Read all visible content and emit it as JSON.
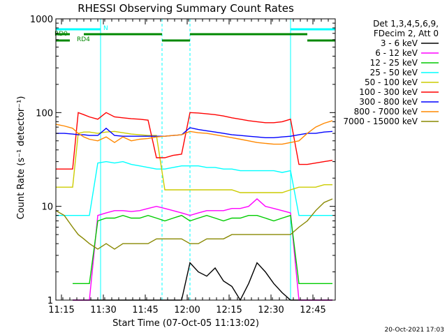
{
  "chart_data": {
    "type": "line",
    "title": "RHESSI Observing Summary Count Rates",
    "xlabel": "Start Time (07-Oct-05 11:13:02)",
    "ylabel": "Count Rate (s⁻¹ detector⁻¹)",
    "y_scale": "log",
    "ylim": [
      1,
      1000
    ],
    "xlim_minutes": [
      0,
      100
    ],
    "x_ticks": [
      {
        "label": "11:15",
        "minutes": 2
      },
      {
        "label": "11:30",
        "minutes": 17
      },
      {
        "label": "11:45",
        "minutes": 32
      },
      {
        "label": "12:00",
        "minutes": 47
      },
      {
        "label": "12:15",
        "minutes": 62
      },
      {
        "label": "12:30",
        "minutes": 77
      },
      {
        "label": "12:45",
        "minutes": 92
      }
    ],
    "y_ticks": [
      {
        "label": "1",
        "value": 1
      },
      {
        "label": "10",
        "value": 10
      },
      {
        "label": "100",
        "value": 100
      },
      {
        "label": "1000",
        "value": 1000
      }
    ],
    "legend_header": [
      "Det 1,3,4,5,6,9,",
      "FDecim 2, Att 0"
    ],
    "legend_position": "right",
    "series": [
      {
        "name": "3 - 6 keV",
        "color": "#000000",
        "x": [
          6,
          8,
          10,
          12,
          15,
          18,
          21,
          24,
          27,
          30,
          33,
          36,
          39,
          42,
          45,
          48,
          51,
          54,
          57,
          60,
          63,
          66,
          69,
          72,
          75,
          78,
          81,
          84,
          87,
          90,
          93,
          96,
          99
        ],
        "values": [
          1,
          1,
          1,
          1,
          1,
          1,
          1,
          1,
          1,
          1,
          1,
          1,
          1,
          1,
          1,
          2.5,
          2,
          1.8,
          2.2,
          1.6,
          1.4,
          1,
          1.5,
          2.5,
          2,
          1.5,
          1.2,
          1,
          1,
          1,
          1,
          1,
          1
        ]
      },
      {
        "name": "6 - 12 keV",
        "color": "#ff00ff",
        "x": [
          6,
          8,
          10,
          12,
          15,
          18,
          21,
          24,
          27,
          30,
          33,
          36,
          39,
          42,
          45,
          48,
          51,
          54,
          57,
          60,
          63,
          66,
          69,
          72,
          75,
          78,
          81,
          84,
          87,
          90,
          93,
          96,
          99
        ],
        "values": [
          1,
          1,
          1,
          1,
          8,
          8.5,
          9,
          9,
          8.8,
          9,
          9.5,
          10,
          9.5,
          9,
          8.5,
          8,
          8.5,
          9,
          9,
          9,
          9.5,
          9.5,
          10,
          12,
          10,
          9.5,
          9,
          8.5,
          1,
          1,
          1,
          1,
          1
        ]
      },
      {
        "name": "12 - 25 keV",
        "color": "#00cc00",
        "x": [
          6,
          8,
          10,
          12,
          15,
          18,
          21,
          24,
          27,
          30,
          33,
          36,
          39,
          42,
          45,
          48,
          51,
          54,
          57,
          60,
          63,
          66,
          69,
          72,
          75,
          78,
          81,
          84,
          87,
          90,
          93,
          96,
          99
        ],
        "values": [
          1.5,
          1.5,
          1.5,
          1.5,
          7,
          7.5,
          7.5,
          8,
          7.5,
          7.5,
          8,
          7.5,
          7,
          7.5,
          8,
          7,
          7.5,
          8,
          7.5,
          7,
          7.5,
          7.5,
          8,
          8,
          7.5,
          7,
          7.5,
          8,
          1.5,
          1.5,
          1.5,
          1.5,
          1.5
        ]
      },
      {
        "name": "25 - 50 keV",
        "color": "#00ffff",
        "x": [
          0,
          3,
          6,
          8,
          10,
          12,
          15,
          18,
          21,
          24,
          27,
          30,
          33,
          36,
          39,
          42,
          45,
          48,
          51,
          54,
          57,
          60,
          63,
          66,
          69,
          72,
          75,
          78,
          81,
          84,
          87,
          90,
          93,
          96,
          99
        ],
        "values": [
          8,
          8,
          8,
          8,
          8,
          8,
          29,
          30,
          29,
          30,
          28,
          27,
          26,
          25,
          25,
          26,
          27,
          27,
          27,
          26,
          26,
          25,
          25,
          24,
          24,
          24,
          24,
          24,
          23,
          24,
          8,
          8,
          8,
          8,
          8
        ]
      },
      {
        "name": "50 - 100 keV",
        "color": "#cccc00",
        "x": [
          0,
          3,
          6,
          8,
          10,
          12,
          15,
          18,
          21,
          24,
          27,
          30,
          33,
          36,
          39,
          42,
          45,
          48,
          51,
          54,
          57,
          60,
          63,
          66,
          69,
          72,
          75,
          78,
          81,
          84,
          87,
          90,
          93,
          96,
          99
        ],
        "values": [
          16,
          16,
          16,
          60,
          62,
          62,
          60,
          62,
          63,
          61,
          59,
          58,
          57,
          57,
          15,
          15,
          15,
          15,
          15,
          15,
          15,
          15,
          15,
          14,
          14,
          14,
          14,
          14,
          14,
          15,
          16,
          16,
          16,
          17,
          17
        ]
      },
      {
        "name": "100 - 300 keV",
        "color": "#ff0000",
        "x": [
          0,
          3,
          6,
          8,
          10,
          12,
          15,
          18,
          21,
          24,
          27,
          30,
          33,
          36,
          39,
          42,
          45,
          48,
          51,
          54,
          57,
          60,
          63,
          66,
          69,
          72,
          75,
          78,
          81,
          84,
          87,
          90,
          93,
          96,
          99
        ],
        "values": [
          25,
          25,
          25,
          100,
          95,
          90,
          85,
          100,
          90,
          88,
          86,
          85,
          83,
          33,
          33,
          35,
          36,
          100,
          99,
          97,
          95,
          92,
          88,
          85,
          82,
          80,
          78,
          78,
          80,
          85,
          28,
          28,
          29,
          30,
          31
        ]
      },
      {
        "name": "300 - 800 keV",
        "color": "#0000ff",
        "x": [
          0,
          3,
          6,
          8,
          10,
          12,
          15,
          18,
          21,
          24,
          27,
          30,
          33,
          36,
          39,
          42,
          45,
          48,
          51,
          54,
          57,
          60,
          63,
          66,
          69,
          72,
          75,
          78,
          81,
          84,
          87,
          90,
          93,
          96,
          99
        ],
        "values": [
          60,
          60,
          59,
          58,
          58,
          57,
          57,
          68,
          57,
          56,
          56,
          56,
          56,
          56,
          56,
          57,
          58,
          69,
          66,
          64,
          62,
          60,
          58,
          57,
          56,
          55,
          54,
          54,
          55,
          56,
          58,
          60,
          60,
          62,
          63
        ]
      },
      {
        "name": "800 - 7000 keV",
        "color": "#ff8800",
        "x": [
          0,
          3,
          6,
          8,
          10,
          12,
          15,
          18,
          21,
          24,
          27,
          30,
          33,
          36,
          39,
          42,
          45,
          48,
          51,
          54,
          57,
          60,
          63,
          66,
          69,
          72,
          75,
          78,
          81,
          84,
          87,
          90,
          93,
          96,
          99
        ],
        "values": [
          75,
          72,
          68,
          60,
          55,
          52,
          50,
          55,
          48,
          55,
          50,
          52,
          53,
          55,
          56,
          57,
          58,
          63,
          61,
          60,
          58,
          56,
          54,
          52,
          50,
          48,
          47,
          46,
          46,
          48,
          50,
          60,
          70,
          77,
          82
        ]
      },
      {
        "name": "7000 - 15000 keV",
        "color": "#888800",
        "x": [
          0,
          3,
          6,
          8,
          10,
          12,
          15,
          18,
          21,
          24,
          27,
          30,
          33,
          36,
          39,
          42,
          45,
          48,
          51,
          54,
          57,
          60,
          63,
          66,
          69,
          72,
          75,
          78,
          81,
          84,
          87,
          90,
          93,
          96,
          99
        ],
        "values": [
          9,
          8,
          6,
          5,
          4.5,
          4,
          3.5,
          4,
          3.5,
          4,
          4,
          4,
          4,
          4.5,
          4.5,
          4.5,
          4.5,
          4,
          4,
          4.5,
          4.5,
          4.5,
          5,
          5,
          5,
          5,
          5,
          5,
          5,
          5,
          6,
          7,
          9,
          11,
          12
        ]
      }
    ],
    "attenuator_bars": [
      {
        "label": "N",
        "color": "#00ffff",
        "segments": [
          [
            0,
            16
          ],
          [
            84,
            100
          ]
        ]
      },
      {
        "label": "RD0",
        "color": "#008800",
        "segments": [
          [
            0,
            5
          ],
          [
            10,
            38
          ],
          [
            48,
            90
          ]
        ]
      },
      {
        "label": "RD4",
        "color": "#008800",
        "segments": [
          [
            0,
            5
          ],
          [
            38,
            48
          ],
          [
            90,
            100
          ]
        ]
      }
    ],
    "vertical_markers": {
      "solid": [
        16,
        84
      ],
      "dashed": [
        16,
        38,
        48,
        84,
        100
      ],
      "color": "#00ffff"
    },
    "grid": false
  },
  "footer": {
    "timestamp": "20-Oct-2021 17:03"
  }
}
